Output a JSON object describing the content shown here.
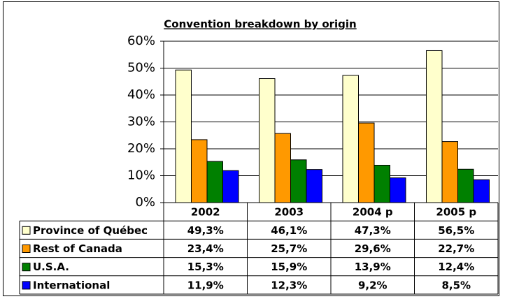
{
  "chart_data": {
    "type": "bar",
    "title": "Convention breakdown by origin",
    "categories": [
      "2002",
      "2003",
      "2004 p",
      "2005 p"
    ],
    "series": [
      {
        "name": "Province of Québec",
        "color": "#ffffcc",
        "values": [
          49.3,
          46.1,
          47.3,
          56.5
        ],
        "value_labels": [
          "49,3%",
          "46,1%",
          "47,3%",
          "56,5%"
        ]
      },
      {
        "name": "Rest of Canada",
        "color": "#ff9900",
        "values": [
          23.4,
          25.7,
          29.6,
          22.7
        ],
        "value_labels": [
          "23,4%",
          "25,7%",
          "29,6%",
          "22,7%"
        ]
      },
      {
        "name": "U.S.A.",
        "color": "#008000",
        "values": [
          15.3,
          15.9,
          13.9,
          12.4
        ],
        "value_labels": [
          "15,3%",
          "15,9%",
          "13,9%",
          "12,4%"
        ]
      },
      {
        "name": "International",
        "color": "#0000ff",
        "values": [
          11.9,
          12.3,
          9.2,
          8.5
        ],
        "value_labels": [
          "11,9%",
          "12,3%",
          "9,2%",
          "8,5%"
        ]
      }
    ],
    "ylim": [
      0,
      60
    ],
    "yticks": [
      {
        "value": 0,
        "label": "0%"
      },
      {
        "value": 10,
        "label": "10%"
      },
      {
        "value": 20,
        "label": "20%"
      },
      {
        "value": 30,
        "label": "30%"
      },
      {
        "value": 40,
        "label": "40%"
      },
      {
        "value": 50,
        "label": "50%"
      },
      {
        "value": 60,
        "label": "60%"
      }
    ],
    "grid": true
  }
}
